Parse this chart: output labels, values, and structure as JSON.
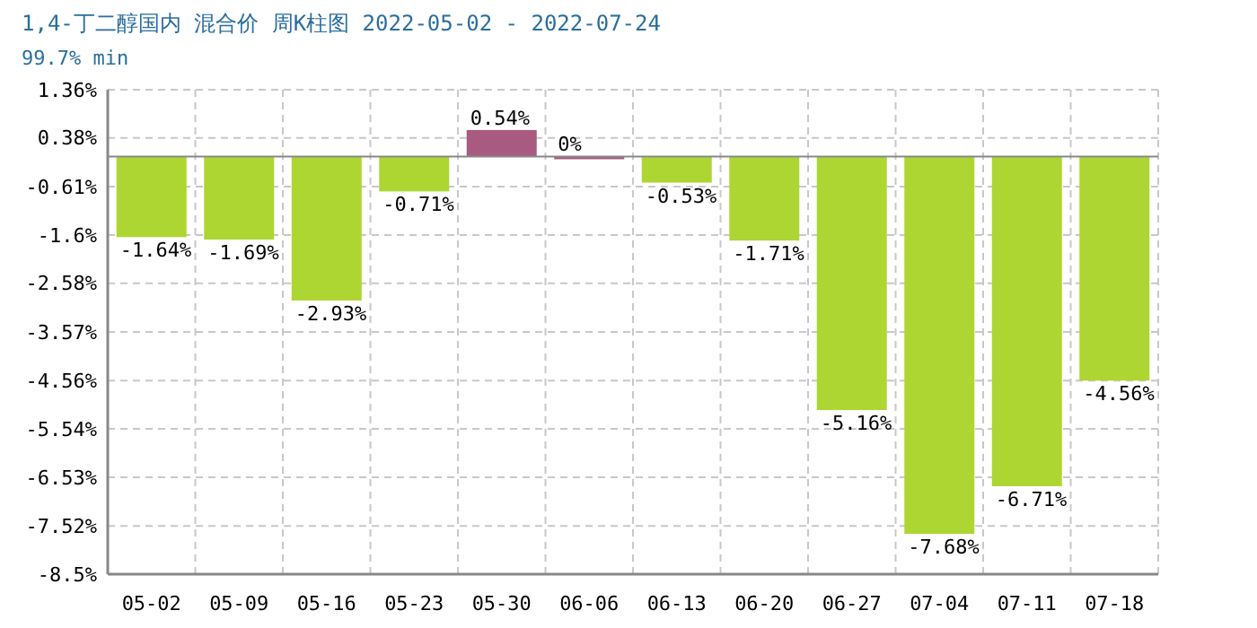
{
  "chart_data": {
    "type": "bar",
    "title": "1,4-丁二醇国内 混合价 周K柱图 2022-05-02 - 2022-07-24",
    "subtitle": "99.7% min",
    "categories": [
      "05-02",
      "05-09",
      "05-16",
      "05-23",
      "05-30",
      "06-06",
      "06-13",
      "06-20",
      "06-27",
      "07-04",
      "07-11",
      "07-18"
    ],
    "values": [
      -1.64,
      -1.69,
      -2.93,
      -0.71,
      0.54,
      0,
      -0.53,
      -1.71,
      -5.16,
      -7.68,
      -6.71,
      -4.56
    ],
    "colors": [
      "#add633",
      "#add633",
      "#add633",
      "#add633",
      "#a85a80",
      "#a85a80",
      "#add633",
      "#add633",
      "#add633",
      "#add633",
      "#add633",
      "#add633"
    ],
    "value_labels": [
      "-1.64%",
      "-1.69%",
      "-2.93%",
      "-0.71%",
      "0.54%",
      "0%",
      "-0.53%",
      "-1.71%",
      "-5.16%",
      "-7.68%",
      "-6.71%",
      "-4.56%"
    ],
    "ylim": [
      -8.5,
      1.36
    ],
    "yticks": [
      {
        "value": 1.36,
        "label": "1.36%"
      },
      {
        "value": 0.38,
        "label": "0.38%"
      },
      {
        "value": -0.61,
        "label": "-0.61%"
      },
      {
        "value": -1.6,
        "label": "-1.6%"
      },
      {
        "value": -2.58,
        "label": "-2.58%"
      },
      {
        "value": -3.57,
        "label": "-3.57%"
      },
      {
        "value": -4.56,
        "label": "-4.56%"
      },
      {
        "value": -5.54,
        "label": "-5.54%"
      },
      {
        "value": -6.53,
        "label": "-6.53%"
      },
      {
        "value": -7.52,
        "label": "-7.52%"
      },
      {
        "value": -8.5,
        "label": "-8.5%"
      }
    ],
    "grid": true
  }
}
